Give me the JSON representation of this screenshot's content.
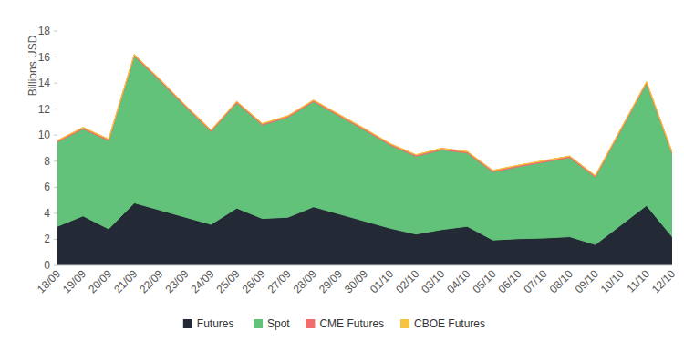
{
  "chart_data": {
    "type": "area",
    "stacked": true,
    "grid": false,
    "legend": "bottom",
    "y_label": "Billions USD",
    "categories": [
      "18/09",
      "19/09",
      "20/09",
      "21/09",
      "22/09",
      "23/09",
      "24/09",
      "25/09",
      "26/09",
      "27/09",
      "28/09",
      "29/09",
      "30/09",
      "01/10",
      "02/10",
      "03/10",
      "04/10",
      "05/10",
      "06/10",
      "07/10",
      "08/10",
      "09/10",
      "10/10",
      "11/10",
      "12/10"
    ],
    "series": [
      {
        "name": "Futures",
        "color": "#232a35",
        "values": [
          3.0,
          3.8,
          2.8,
          4.8,
          4.25,
          3.7,
          3.15,
          4.4,
          3.6,
          3.7,
          4.5,
          3.95,
          3.4,
          2.85,
          2.4,
          2.75,
          3.0,
          1.95,
          2.05,
          2.1,
          2.2,
          1.6,
          3.1,
          4.6,
          2.2
        ]
      },
      {
        "name": "Spot",
        "color": "#63c27a",
        "values": [
          6.48,
          6.68,
          6.78,
          11.28,
          9.93,
          8.48,
          7.13,
          8.08,
          7.18,
          7.68,
          8.08,
          7.53,
          6.98,
          6.38,
          5.98,
          6.13,
          5.63,
          5.23,
          5.53,
          5.83,
          6.08,
          5.18,
          7.28,
          9.38,
          6.38
        ]
      },
      {
        "name": "CME Futures",
        "color": "#f26c6c",
        "values": [
          0.1,
          0.1,
          0.1,
          0.1,
          0.1,
          0.1,
          0.1,
          0.1,
          0.1,
          0.1,
          0.1,
          0.1,
          0.1,
          0.1,
          0.1,
          0.1,
          0.1,
          0.1,
          0.1,
          0.1,
          0.1,
          0.1,
          0.1,
          0.1,
          0.1
        ]
      },
      {
        "name": "CBOE Futures",
        "color": "#f5c242",
        "values": [
          0.02,
          0.02,
          0.02,
          0.02,
          0.02,
          0.02,
          0.02,
          0.02,
          0.02,
          0.02,
          0.02,
          0.02,
          0.02,
          0.02,
          0.02,
          0.02,
          0.02,
          0.02,
          0.02,
          0.02,
          0.02,
          0.02,
          0.02,
          0.02,
          0.02
        ]
      }
    ],
    "ylim": [
      0,
      18
    ],
    "yticks": [
      0,
      2,
      4,
      6,
      8,
      10,
      12,
      14,
      16,
      18
    ]
  }
}
